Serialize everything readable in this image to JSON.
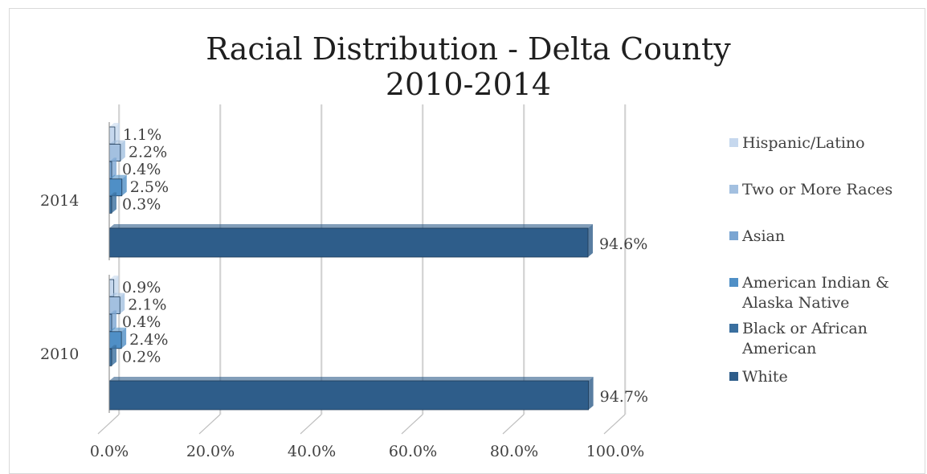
{
  "chart_data": {
    "type": "bar",
    "orientation": "horizontal",
    "title": "Racial Distribution - Delta County\n2010-2014",
    "categories": [
      "2010",
      "2014"
    ],
    "series": [
      {
        "name": "White",
        "values": [
          94.7,
          94.6
        ],
        "color": "#2e5d8a"
      },
      {
        "name": "Black or African American",
        "values": [
          0.2,
          0.3
        ],
        "color": "#3a6f9f"
      },
      {
        "name": "American Indian & Alaska Native",
        "values": [
          2.4,
          2.5
        ],
        "color": "#4f8fc6"
      },
      {
        "name": "Asian",
        "values": [
          0.4,
          0.4
        ],
        "color": "#7aa5d2"
      },
      {
        "name": "Two or More Races",
        "values": [
          2.1,
          2.2
        ],
        "color": "#a3c0e0"
      },
      {
        "name": "Hispanic/Latino",
        "values": [
          0.9,
          1.1
        ],
        "color": "#c6d8ee"
      }
    ],
    "data_labels": {
      "2010": [
        "94.7%",
        "0.2%",
        "2.4%",
        "0.4%",
        "2.1%",
        "0.9%"
      ],
      "2014": [
        "94.6%",
        "0.3%",
        "2.5%",
        "0.4%",
        "2.2%",
        "1.1%"
      ]
    },
    "xticks": [
      "0.0%",
      "20.0%",
      "40.0%",
      "60.0%",
      "80.0%",
      "100.0%"
    ],
    "xlim": [
      0,
      100
    ],
    "grid": true,
    "legend": "right",
    "legend_order": [
      "Hispanic/Latino",
      "Two or More Races",
      "Asian",
      "American Indian & Alaska Native",
      "Black or African American",
      "White"
    ],
    "legend_lines": [
      [
        "Hispanic/Latino"
      ],
      [
        "Two or More Races"
      ],
      [
        "Asian"
      ],
      [
        "American Indian &",
        "Alaska Native"
      ],
      [
        "Black or African",
        "American"
      ],
      [
        "White"
      ]
    ]
  }
}
